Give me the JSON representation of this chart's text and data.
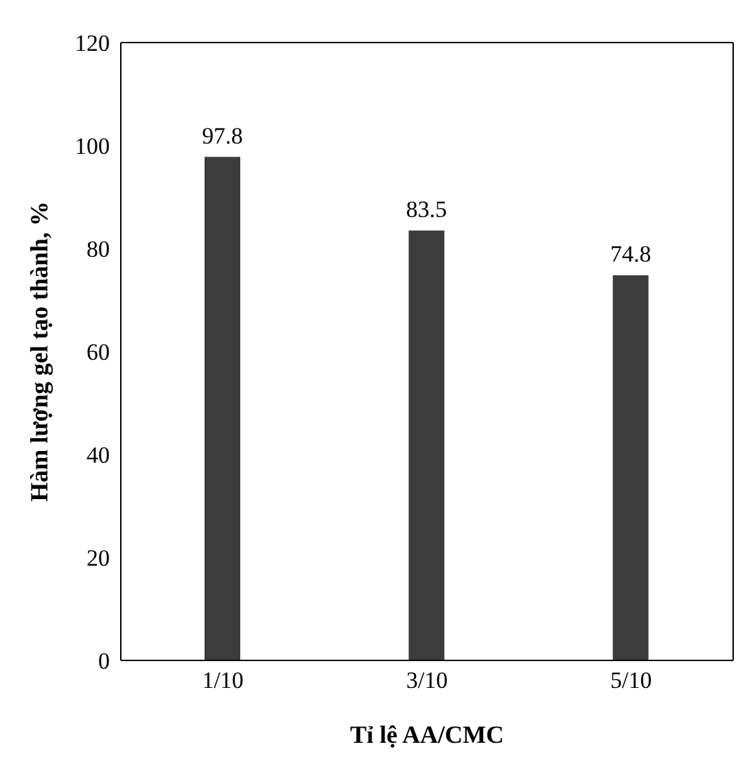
{
  "chart_data": {
    "type": "bar",
    "xlabel": "Tỉ lệ AA/CMC",
    "ylabel": "Hàm lượng gel tạo thành, %",
    "categories": [
      "1/10",
      "3/10",
      "5/10"
    ],
    "values": [
      97.8,
      83.5,
      74.8
    ],
    "color": "#3c3c3c",
    "ylim": [
      0,
      120
    ],
    "yticks": [
      0,
      20,
      40,
      60,
      80,
      100,
      120
    ],
    "data_labels": true
  }
}
